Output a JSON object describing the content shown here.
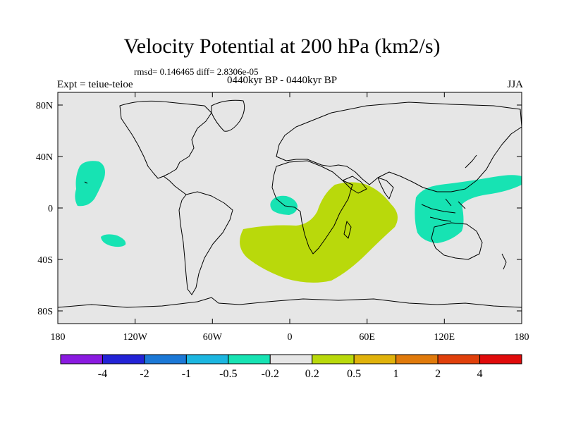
{
  "figure": {
    "title": "Velocity Potential at 200 hPa (km2/s)",
    "stats": "rmsd= 0.146465 diff= 2.8306e-05",
    "period": "0440kyr BP - 0440kyr BP",
    "experiment": "Expt = teiue-teioe",
    "season": "JJA"
  },
  "map": {
    "projection": "cylindrical-equidistant",
    "lon_range": [
      -180,
      180
    ],
    "lat_range": [
      -90,
      90
    ],
    "ocean_color": "#e6e6e6",
    "coastline_color": "#000000",
    "x_tick_labels": [
      "180",
      "120W",
      "60W",
      "0",
      "60E",
      "120E",
      "180"
    ],
    "y_tick_labels": [
      "80N",
      "40N",
      "0",
      "40S",
      "80S"
    ]
  },
  "anomaly_regions": [
    {
      "name": "North Pacific",
      "sign": "negative",
      "level": "-0.5 to -0.2",
      "color": "#17e3b3"
    },
    {
      "name": "South Pacific",
      "sign": "negative",
      "level": "-0.5 to -0.2",
      "color": "#17e3b3"
    },
    {
      "name": "Gulf of Guinea",
      "sign": "negative",
      "level": "-0.5 to -0.2",
      "color": "#17e3b3"
    },
    {
      "name": "Maritime Continent / West Pacific",
      "sign": "negative",
      "level": "-0.5 to -0.2",
      "color": "#17e3b3"
    },
    {
      "name": "Southern Africa / Indian Ocean",
      "sign": "positive",
      "level": "0.2 to 0.5",
      "color": "#b9d90b"
    }
  ],
  "colorbar": {
    "colors": [
      "#8a1ae0",
      "#2323d6",
      "#1b78d6",
      "#1cb6e0",
      "#17e3b3",
      "#e6e6e6",
      "#b9d90b",
      "#e0b20b",
      "#e07a0b",
      "#e0400b",
      "#e00b0b"
    ],
    "labels": [
      "-4",
      "-2",
      "-1",
      "-0.5",
      "-0.2",
      "0.2",
      "0.5",
      "1",
      "2",
      "4"
    ]
  }
}
